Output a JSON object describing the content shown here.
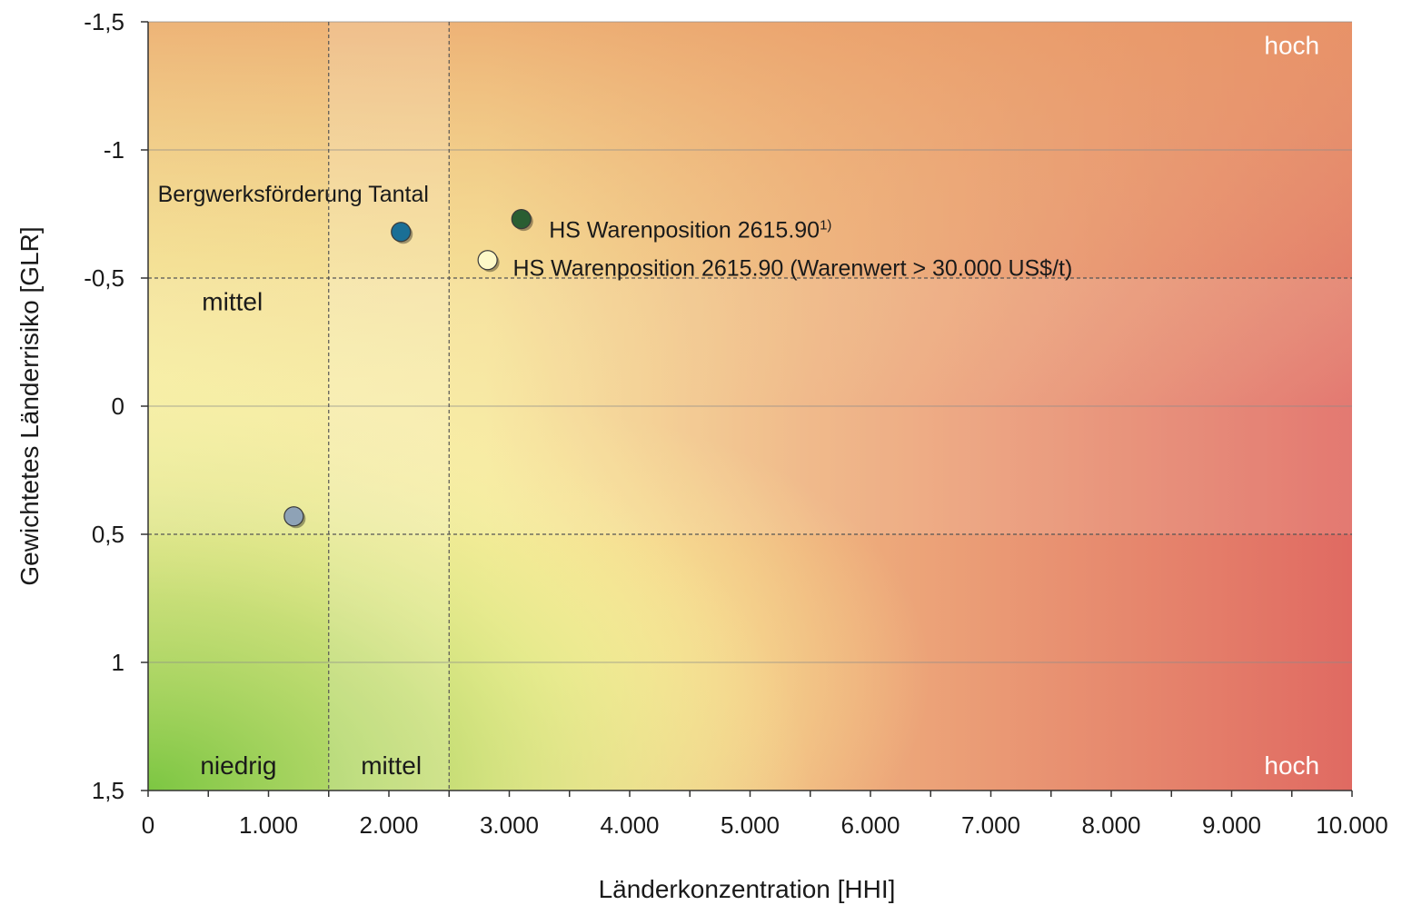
{
  "chart_data": {
    "type": "scatter",
    "xlabel": "Länderkonzentration [HHI]",
    "ylabel": "Gewichtetes Länderrisiko [GLR]",
    "xlim": [
      0,
      10000
    ],
    "ylim": [
      -1.5,
      1.5
    ],
    "y_inverted": true,
    "x_ticks": [
      {
        "value": 0,
        "label": "0"
      },
      {
        "value": 1000,
        "label": "1.000"
      },
      {
        "value": 2000,
        "label": "2.000"
      },
      {
        "value": 3000,
        "label": "3.000"
      },
      {
        "value": 4000,
        "label": "4.000"
      },
      {
        "value": 5000,
        "label": "5.000"
      },
      {
        "value": 6000,
        "label": "6.000"
      },
      {
        "value": 7000,
        "label": "7.000"
      },
      {
        "value": 8000,
        "label": "8.000"
      },
      {
        "value": 9000,
        "label": "9.000"
      },
      {
        "value": 10000,
        "label": "10.000"
      }
    ],
    "y_ticks": [
      {
        "value": -1.5,
        "label": "-1,5"
      },
      {
        "value": -1,
        "label": "-1"
      },
      {
        "value": -0.5,
        "label": "-0,5"
      },
      {
        "value": 0,
        "label": "0"
      },
      {
        "value": 0.5,
        "label": "0,5"
      },
      {
        "value": 1,
        "label": "1"
      },
      {
        "value": 1.5,
        "label": "1,5"
      }
    ],
    "grid": true,
    "thresholds": {
      "x": [
        1500,
        2500
      ],
      "y": [
        -0.5,
        0.5
      ]
    },
    "zone_labels": [
      {
        "text": "hoch",
        "x": 9500,
        "y": -1.41,
        "color": "#ffffff"
      },
      {
        "text": "mittel",
        "x": 700,
        "y": -0.41,
        "color": "#1a1a1a"
      },
      {
        "text": "niedrig",
        "x": 750,
        "y": 1.4,
        "color": "#1a1a1a"
      },
      {
        "text": "mittel",
        "x": 2020,
        "y": 1.4,
        "color": "#1a1a1a"
      },
      {
        "text": "hoch",
        "x": 9500,
        "y": 1.4,
        "color": "#ffffff"
      }
    ],
    "points": [
      {
        "x": 2100,
        "y": -0.68,
        "color": "#1a6f96",
        "label": "Bergwerksförderung Tantal",
        "label_x": 80,
        "label_y": -0.83,
        "sup": ""
      },
      {
        "x": 3100,
        "y": -0.73,
        "color": "#2a5e32",
        "label": "HS Warenposition 2615.90",
        "label_x": 3330,
        "label_y": -0.69,
        "sup": "1)"
      },
      {
        "x": 2820,
        "y": -0.57,
        "color": "#fdf8c8",
        "label": "HS Warenposition 2615.90 (Warenwert > 30.000 US$/t)",
        "label_x": 3030,
        "label_y": -0.54,
        "sup": ""
      },
      {
        "x": 1210,
        "y": 0.43,
        "color": "#8ea2b6",
        "label": "",
        "label_x": 0,
        "label_y": 0,
        "sup": ""
      }
    ]
  }
}
